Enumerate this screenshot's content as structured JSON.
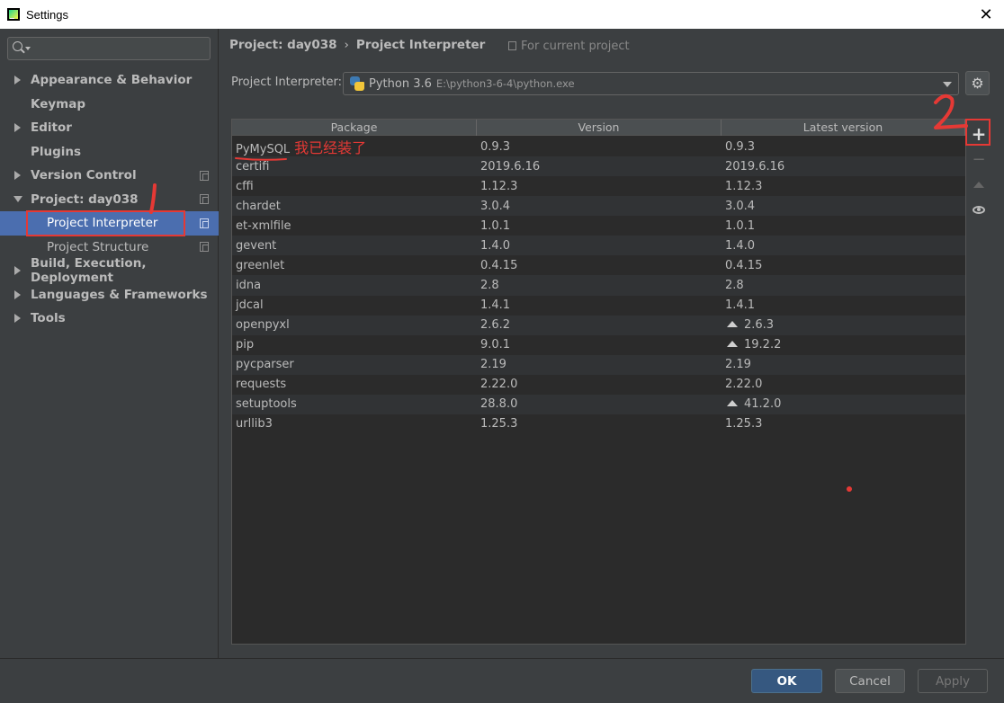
{
  "window": {
    "title": "Settings",
    "close_glyph": "✕"
  },
  "sidebar": {
    "search": {
      "value": "",
      "placeholder": ""
    },
    "items": [
      {
        "label": "Appearance & Behavior",
        "expander": "right"
      },
      {
        "label": "Keymap"
      },
      {
        "label": "Editor",
        "expander": "right"
      },
      {
        "label": "Plugins"
      },
      {
        "label": "Version Control",
        "expander": "right",
        "copy_icon": true
      },
      {
        "label": "Project: day038",
        "expander": "down",
        "copy_icon": true
      },
      {
        "label": "Project Interpreter",
        "sub": true,
        "selected": true,
        "copy_icon": true
      },
      {
        "label": "Project Structure",
        "sub": true,
        "copy_icon": true
      },
      {
        "label": "Build, Execution, Deployment",
        "expander": "right"
      },
      {
        "label": "Languages & Frameworks",
        "expander": "right"
      },
      {
        "label": "Tools",
        "expander": "right"
      }
    ],
    "help": "?"
  },
  "header": {
    "breadcrumb": [
      "Project: day038",
      "Project Interpreter"
    ],
    "breadcrumb_sep": "›",
    "scope": "For current project"
  },
  "interpreter": {
    "label": "Project Interpreter:",
    "name": "Python 3.6",
    "path": "E:\\python3-6-4\\python.exe"
  },
  "table": {
    "columns": [
      "Package",
      "Version",
      "Latest version"
    ],
    "rows": [
      {
        "package": "PyMySQL",
        "version": "0.9.3",
        "latest": "0.9.3",
        "upgrade": false
      },
      {
        "package": "certifi",
        "version": "2019.6.16",
        "latest": "2019.6.16",
        "upgrade": false
      },
      {
        "package": "cffi",
        "version": "1.12.3",
        "latest": "1.12.3",
        "upgrade": false
      },
      {
        "package": "chardet",
        "version": "3.0.4",
        "latest": "3.0.4",
        "upgrade": false
      },
      {
        "package": "et-xmlfile",
        "version": "1.0.1",
        "latest": "1.0.1",
        "upgrade": false
      },
      {
        "package": "gevent",
        "version": "1.4.0",
        "latest": "1.4.0",
        "upgrade": false
      },
      {
        "package": "greenlet",
        "version": "0.4.15",
        "latest": "0.4.15",
        "upgrade": false
      },
      {
        "package": "idna",
        "version": "2.8",
        "latest": "2.8",
        "upgrade": false
      },
      {
        "package": "jdcal",
        "version": "1.4.1",
        "latest": "1.4.1",
        "upgrade": false
      },
      {
        "package": "openpyxl",
        "version": "2.6.2",
        "latest": "2.6.3",
        "upgrade": true
      },
      {
        "package": "pip",
        "version": "9.0.1",
        "latest": "19.2.2",
        "upgrade": true
      },
      {
        "package": "pycparser",
        "version": "2.19",
        "latest": "2.19",
        "upgrade": false
      },
      {
        "package": "requests",
        "version": "2.22.0",
        "latest": "2.22.0",
        "upgrade": false
      },
      {
        "package": "setuptools",
        "version": "28.8.0",
        "latest": "41.2.0",
        "upgrade": true
      },
      {
        "package": "urllib3",
        "version": "1.25.3",
        "latest": "1.25.3",
        "upgrade": false
      }
    ]
  },
  "tools": {
    "add": "+",
    "remove": "−",
    "upgrade": "",
    "show_early": ""
  },
  "annotations": {
    "note_text": "我已经装了",
    "mark_1": "1",
    "mark_2": "2",
    "color": "#e53935"
  },
  "buttons": {
    "ok": "OK",
    "cancel": "Cancel",
    "apply": "Apply"
  }
}
